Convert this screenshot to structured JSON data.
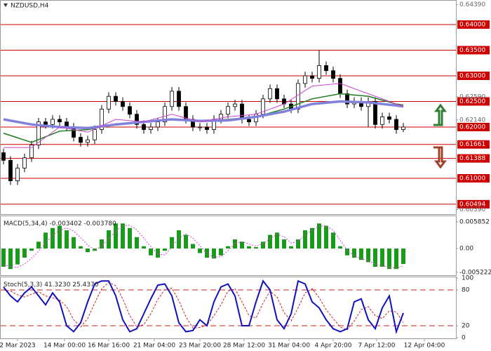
{
  "chart_data": [
    {
      "type": "candlestick",
      "title": "NZDUSD,H4",
      "x": [
        0,
        1,
        2,
        3,
        4,
        5,
        6,
        7,
        8,
        9,
        10,
        11,
        12,
        13,
        14,
        15,
        16,
        17,
        18,
        19,
        20,
        21,
        22,
        23,
        24,
        25,
        26,
        27,
        28,
        29,
        30,
        31,
        32,
        33,
        34,
        35,
        36,
        37,
        38,
        39,
        40,
        41,
        42,
        43,
        44,
        45,
        46,
        47,
        48,
        49,
        50,
        51,
        52,
        53,
        54,
        55,
        56,
        57
      ],
      "open": [
        0.615,
        0.6135,
        0.6095,
        0.612,
        0.614,
        0.6165,
        0.621,
        0.6205,
        0.6215,
        0.621,
        0.62,
        0.618,
        0.617,
        0.6175,
        0.6195,
        0.6235,
        0.626,
        0.625,
        0.624,
        0.6225,
        0.6205,
        0.6195,
        0.62,
        0.621,
        0.624,
        0.627,
        0.624,
        0.6215,
        0.62,
        0.62,
        0.6195,
        0.6215,
        0.6225,
        0.624,
        0.6245,
        0.6215,
        0.621,
        0.6225,
        0.6255,
        0.6275,
        0.6255,
        0.6245,
        0.6235,
        0.6285,
        0.63,
        0.6295,
        0.632,
        0.631,
        0.6295,
        0.6265,
        0.6245,
        0.625,
        0.624,
        0.625,
        0.6205,
        0.622,
        0.6215,
        0.6195
      ],
      "high": [
        0.6158,
        0.6143,
        0.6128,
        0.6148,
        0.6173,
        0.6218,
        0.6218,
        0.6223,
        0.6223,
        0.6218,
        0.6208,
        0.6188,
        0.6183,
        0.6203,
        0.6243,
        0.6268,
        0.6268,
        0.6258,
        0.6248,
        0.6233,
        0.6213,
        0.6208,
        0.6218,
        0.6248,
        0.6278,
        0.6278,
        0.6248,
        0.6223,
        0.6208,
        0.6208,
        0.6223,
        0.6233,
        0.6248,
        0.6253,
        0.6253,
        0.6223,
        0.6233,
        0.6263,
        0.6283,
        0.6283,
        0.6263,
        0.6253,
        0.6293,
        0.6308,
        0.6308,
        0.635,
        0.6328,
        0.6318,
        0.6303,
        0.6273,
        0.6258,
        0.6258,
        0.6258,
        0.6258,
        0.6228,
        0.6228,
        0.6223,
        0.6208
      ],
      "low": [
        0.6127,
        0.6087,
        0.6087,
        0.6112,
        0.6132,
        0.6157,
        0.6197,
        0.6197,
        0.6202,
        0.6192,
        0.6172,
        0.6162,
        0.6162,
        0.6167,
        0.6187,
        0.6227,
        0.6242,
        0.6232,
        0.6217,
        0.6197,
        0.6187,
        0.6187,
        0.6192,
        0.6202,
        0.6232,
        0.6232,
        0.6207,
        0.6192,
        0.6192,
        0.6187,
        0.6187,
        0.6207,
        0.6217,
        0.6232,
        0.6207,
        0.6202,
        0.6202,
        0.6217,
        0.6247,
        0.6247,
        0.6237,
        0.6227,
        0.6227,
        0.6277,
        0.6287,
        0.6287,
        0.6302,
        0.6287,
        0.6257,
        0.6237,
        0.6237,
        0.6232,
        0.62,
        0.6197,
        0.6197,
        0.6207,
        0.6187,
        0.619
      ],
      "close": [
        0.6135,
        0.6095,
        0.612,
        0.614,
        0.6165,
        0.621,
        0.6205,
        0.6215,
        0.621,
        0.62,
        0.618,
        0.617,
        0.6175,
        0.6195,
        0.6235,
        0.626,
        0.625,
        0.624,
        0.6225,
        0.6205,
        0.6195,
        0.62,
        0.621,
        0.624,
        0.627,
        0.624,
        0.6215,
        0.62,
        0.62,
        0.6195,
        0.6215,
        0.6225,
        0.624,
        0.6245,
        0.6215,
        0.621,
        0.6225,
        0.6255,
        0.6275,
        0.6255,
        0.6245,
        0.6235,
        0.6285,
        0.63,
        0.6295,
        0.632,
        0.631,
        0.6295,
        0.6265,
        0.6245,
        0.625,
        0.624,
        0.625,
        0.6205,
        0.622,
        0.6215,
        0.6195,
        0.62
      ],
      "up_color": "#ffffff",
      "down_color": "#000000",
      "series": [
        {
          "color": "#1f7a1f",
          "width": 1.5,
          "x": [
            0,
            4,
            8,
            12,
            16,
            20,
            24,
            28,
            32,
            36,
            40,
            44,
            48,
            52,
            56,
            57
          ],
          "values": [
            0.6188,
            0.617,
            0.6192,
            0.6195,
            0.6205,
            0.621,
            0.6215,
            0.6212,
            0.6215,
            0.622,
            0.6235,
            0.6255,
            0.6265,
            0.626,
            0.6245,
            0.6243
          ]
        },
        {
          "color": "#8080dd",
          "width": 3.5,
          "x": [
            0,
            4,
            8,
            12,
            16,
            20,
            24,
            28,
            32,
            36,
            40,
            44,
            48,
            52,
            56,
            57
          ],
          "values": [
            0.6215,
            0.6205,
            0.62,
            0.6198,
            0.6205,
            0.621,
            0.6215,
            0.6212,
            0.6213,
            0.622,
            0.623,
            0.6245,
            0.625,
            0.6248,
            0.6242,
            0.624
          ]
        },
        {
          "color": "#d040d0",
          "width": 1,
          "x": [
            0,
            4,
            8,
            12,
            16,
            20,
            24,
            28,
            32,
            36,
            40,
            44,
            48,
            52,
            56,
            57
          ],
          "values": [
            0.616,
            0.616,
            0.62,
            0.619,
            0.6215,
            0.621,
            0.6225,
            0.621,
            0.622,
            0.6225,
            0.6245,
            0.628,
            0.6285,
            0.6265,
            0.6245,
            0.624
          ]
        }
      ],
      "xlim": [
        -0.5,
        64.5
      ],
      "xticks": [
        {
          "value": 2,
          "label": "2 Mar 2023"
        },
        {
          "value": 8.7,
          "label": "14 Mar 00:00"
        },
        {
          "value": 15,
          "label": "16 Mar 16:00"
        },
        {
          "value": 21.5,
          "label": "21 Mar 04:00"
        },
        {
          "value": 28,
          "label": "23 Mar 20:00"
        },
        {
          "value": 34.3,
          "label": "28 Mar 12:00"
        },
        {
          "value": 40.7,
          "label": "31 Mar 04:00"
        },
        {
          "value": 47,
          "label": "4 Apr 20:00"
        },
        {
          "value": 53.2,
          "label": "7 Apr 12:00"
        },
        {
          "value": 60,
          "label": "12 Apr 04:00"
        }
      ],
      "ylim": [
        0.60301,
        0.64479
      ],
      "yticks": [
        {
          "value": 0.6439,
          "label": "0.64390"
        },
        {
          "value": 0.6259,
          "label": "0.62590"
        },
        {
          "value": 0.6214,
          "label": "0.62140"
        },
        {
          "value": 0.6039,
          "label": "0.60390"
        }
      ],
      "levels": [
        {
          "value": 0.64,
          "label": "0.64000"
        },
        {
          "value": 0.635,
          "label": "0.63500"
        },
        {
          "value": 0.63,
          "label": "0.63000"
        },
        {
          "value": 0.625,
          "label": "0.62500"
        },
        {
          "value": 0.62,
          "label": "0.62000"
        },
        {
          "value": 0.61661,
          "label": "0.61661"
        },
        {
          "value": 0.61388,
          "label": "0.61388"
        },
        {
          "value": 0.61,
          "label": "0.61000"
        },
        {
          "value": 0.60494,
          "label": "0.60494"
        }
      ],
      "level_color": "#cc0000"
    },
    {
      "type": "macd",
      "title": "MACD(5,34,4)",
      "histogram": {
        "color": "#1a9a1a",
        "value_label": "-0.003402",
        "values": [
          -0.004,
          -0.0045,
          -0.0035,
          -0.002,
          -0.0005,
          0.0015,
          0.0035,
          0.0045,
          0.005,
          0.004,
          0.0025,
          0.0005,
          -0.0008,
          -0.0005,
          0.002,
          0.004,
          0.0055,
          0.0055,
          0.0045,
          0.0025,
          0.0005,
          -0.0015,
          -0.002,
          -0.0005,
          0.0025,
          0.004,
          0.003,
          0.001,
          -0.001,
          -0.002,
          -0.0022,
          -0.0015,
          0.0005,
          0.002,
          0.0015,
          0.0005,
          0.0003,
          0.0015,
          0.003,
          0.0035,
          0.002,
          0.0005,
          0.002,
          0.004,
          0.0045,
          0.0055,
          0.005,
          0.0035,
          0.0005,
          -0.0015,
          -0.002,
          -0.0025,
          -0.003,
          -0.004,
          -0.004,
          -0.0045,
          -0.0045,
          -0.003402
        ]
      },
      "signal": {
        "color": "#d040d0",
        "value_label": "-0.003780",
        "values": [
          -0.0035,
          -0.004,
          -0.0041,
          -0.0034,
          -0.0021,
          -0.0006,
          0.0012,
          0.0029,
          0.004,
          0.0045,
          0.0038,
          0.0024,
          0.0008,
          -0.0003,
          0.0005,
          0.0022,
          0.0038,
          0.005,
          0.0051,
          0.0041,
          0.0023,
          0.0004,
          -0.0012,
          -0.0014,
          0.0003,
          0.0023,
          0.0032,
          0.0023,
          0.0006,
          -0.0011,
          -0.0019,
          -0.0018,
          -0.0005,
          0.0011,
          0.0015,
          0.001,
          0.0005,
          0.001,
          0.0022,
          0.0031,
          0.0026,
          0.0012,
          0.0015,
          0.003,
          0.004,
          0.0049,
          0.005,
          0.004,
          0.0018,
          -0.0004,
          -0.0016,
          -0.0022,
          -0.0027,
          -0.0034,
          -0.0038,
          -0.0041,
          -0.0043,
          -0.00378
        ]
      },
      "ylim": [
        -0.00585,
        0.00724
      ],
      "yticks": [
        0.005852,
        {
          "value": 0,
          "label": "0.00"
        },
        -0.005222
      ]
    },
    {
      "type": "stochastic",
      "title": "Stoch(5,3,3)",
      "k": {
        "color": "#1010c0",
        "value_label": "41.3230",
        "values": [
          85,
          70,
          60,
          75,
          85,
          70,
          55,
          75,
          60,
          20,
          10,
          25,
          60,
          90,
          95,
          95,
          70,
          30,
          10,
          15,
          40,
          65,
          88,
          90,
          70,
          25,
          10,
          12,
          30,
          20,
          60,
          85,
          90,
          70,
          20,
          20,
          60,
          95,
          80,
          30,
          15,
          40,
          95,
          90,
          60,
          50,
          30,
          15,
          10,
          15,
          60,
          65,
          30,
          15,
          50,
          70,
          10,
          41.323
        ]
      },
      "d": {
        "color": "#cc2222",
        "value_label": "25.4370",
        "values": [
          80,
          78,
          72,
          68,
          73,
          77,
          70,
          67,
          63,
          52,
          30,
          18,
          32,
          58,
          82,
          93,
          87,
          65,
          37,
          18,
          22,
          40,
          64,
          81,
          83,
          62,
          35,
          16,
          17,
          21,
          37,
          55,
          78,
          82,
          60,
          37,
          33,
          58,
          78,
          68,
          42,
          28,
          50,
          75,
          82,
          67,
          47,
          32,
          18,
          13,
          28,
          47,
          52,
          37,
          32,
          45,
          43,
          25.437
        ]
      },
      "ylim": [
        0,
        100
      ],
      "yticks": [
        0,
        20,
        80,
        100
      ],
      "levels": [
        20,
        80
      ],
      "level_color": "#cc2222"
    }
  ]
}
